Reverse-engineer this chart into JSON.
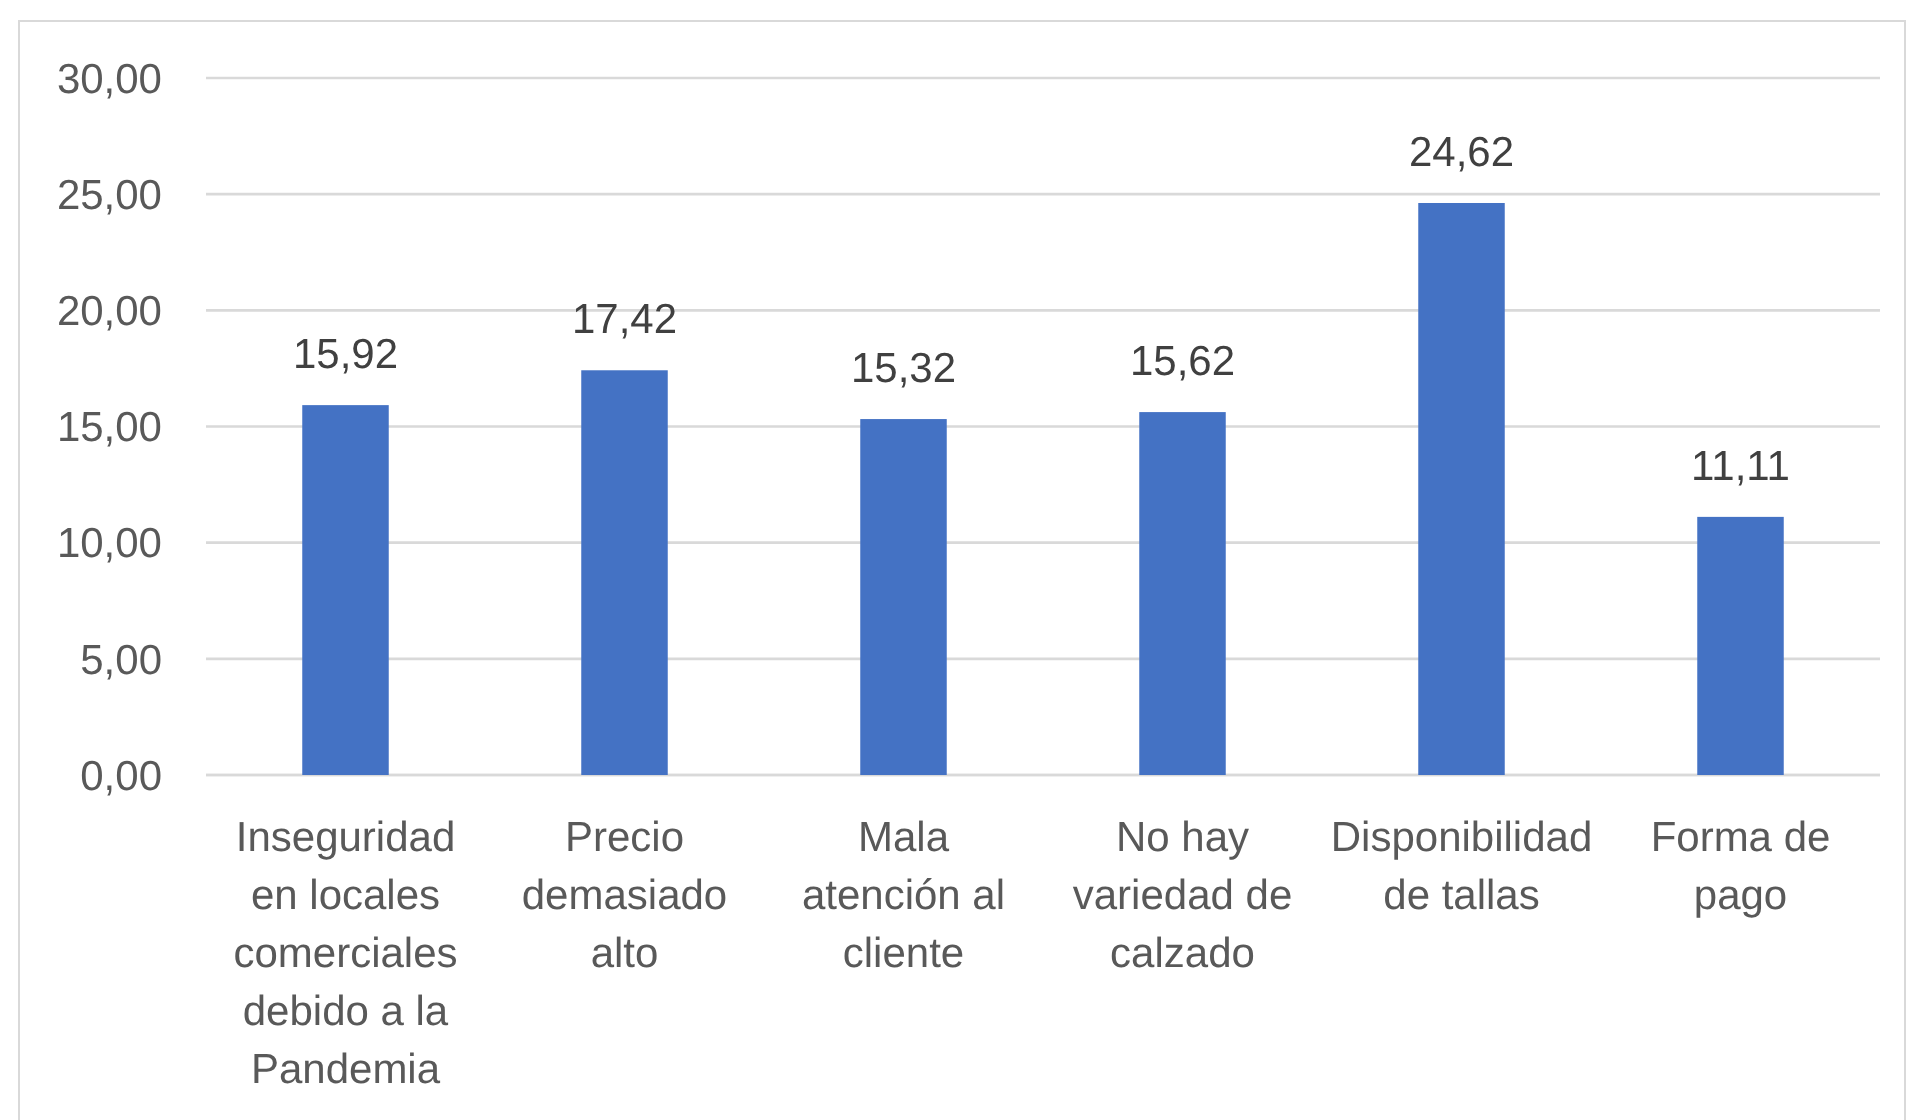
{
  "chart_data": {
    "type": "bar",
    "categories": [
      "Inseguridad en locales comerciales debido a la Pandemia",
      "Precio demasiado alto",
      "Mala atención al cliente",
      "No hay variedad de calzado",
      "Disponibilidad de tallas",
      "Forma de pago"
    ],
    "values": [
      15.92,
      17.42,
      15.32,
      15.62,
      24.62,
      11.11
    ],
    "value_labels": [
      "15,92",
      "17,42",
      "15,32",
      "15,62",
      "24,62",
      "11,11"
    ],
    "color": "#4472c4",
    "ylim": [
      0,
      30
    ],
    "yticks": [
      {
        "value": 0,
        "label": "0,00"
      },
      {
        "value": 5,
        "label": "5,00"
      },
      {
        "value": 10,
        "label": "10,00"
      },
      {
        "value": 15,
        "label": "15,00"
      },
      {
        "value": 20,
        "label": "20,00"
      },
      {
        "value": 25,
        "label": "25,00"
      },
      {
        "value": 30,
        "label": "30,00"
      }
    ],
    "grid": "y"
  }
}
